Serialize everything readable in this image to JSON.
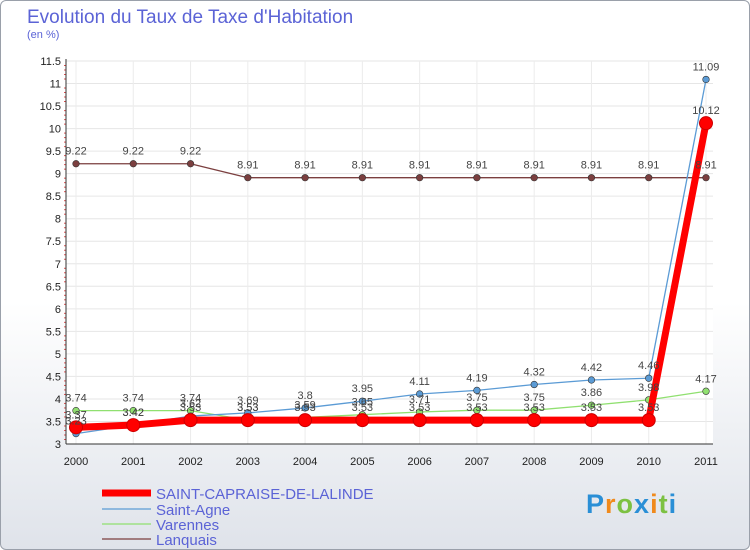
{
  "chart_data": {
    "type": "line",
    "title": "Evolution du Taux de Taxe d'Habitation",
    "ylabel": "(en %)",
    "xlabel": "",
    "categories": [
      "2000",
      "2001",
      "2002",
      "2003",
      "2004",
      "2005",
      "2006",
      "2007",
      "2008",
      "2009",
      "2010",
      "2011"
    ],
    "ylim": [
      3,
      11.5
    ],
    "yticks": [
      "3",
      "3.5",
      "4",
      "4.5",
      "5",
      "5.5",
      "6",
      "6.5",
      "7",
      "7.5",
      "8",
      "8.5",
      "9",
      "9.5",
      "10",
      "10.5",
      "11",
      "11.5"
    ],
    "series": [
      {
        "name": "SAINT-CAPRAISE-DE-LALINDE",
        "color": "#ff0000",
        "values": [
          3.37,
          3.42,
          3.53,
          3.53,
          3.53,
          3.53,
          3.53,
          3.53,
          3.53,
          3.53,
          3.53,
          10.12
        ],
        "labels": [
          "3.37",
          "3.42",
          "3.53",
          "3.53",
          "3.53",
          "3.53",
          "3.53",
          "3.53",
          "3.53",
          "3.53",
          "3.53",
          "10.12"
        ]
      },
      {
        "name": "Saint-Agne",
        "color": "#5b9bd5",
        "values": [
          3.23,
          3.42,
          3.62,
          3.69,
          3.8,
          3.95,
          4.11,
          4.19,
          4.32,
          4.42,
          4.46,
          11.09
        ],
        "labels": [
          "3.23",
          "3.42",
          "3.62",
          "3.69",
          "3.8",
          "3.95",
          "4.11",
          "4.19",
          "4.32",
          "4.42",
          "4.46",
          "11.09"
        ]
      },
      {
        "name": "Varennes",
        "color": "#90e070",
        "values": [
          3.74,
          3.74,
          3.74,
          3.53,
          3.59,
          3.65,
          3.71,
          3.75,
          3.75,
          3.86,
          3.98,
          4.17
        ],
        "labels": [
          "3.74",
          "3.74",
          "3.74",
          "3.53",
          "3.59",
          "3.65",
          "3.71",
          "3.75",
          "3.75",
          "3.86",
          "3.98",
          "4.17"
        ]
      },
      {
        "name": "Lanquais",
        "color": "#7b3f3f",
        "values": [
          9.22,
          9.22,
          9.22,
          8.91,
          8.91,
          8.91,
          8.91,
          8.91,
          8.91,
          8.91,
          8.91,
          8.91
        ],
        "labels": [
          "9.22",
          "9.22",
          "9.22",
          "8.91",
          "8.91",
          "8.91",
          "8.91",
          "8.91",
          "8.91",
          "8.91",
          "8.91",
          "8.91"
        ]
      }
    ],
    "legend_position": "bottom-left"
  },
  "logo_letters": [
    "P",
    "r",
    "o",
    "x",
    "i",
    "t",
    "i"
  ],
  "logo_colors": [
    "#2a8fd6",
    "#f08a1c",
    "#7cc142",
    "#2a8fd6",
    "#f08a1c",
    "#7cc142",
    "#2a8fd6"
  ]
}
